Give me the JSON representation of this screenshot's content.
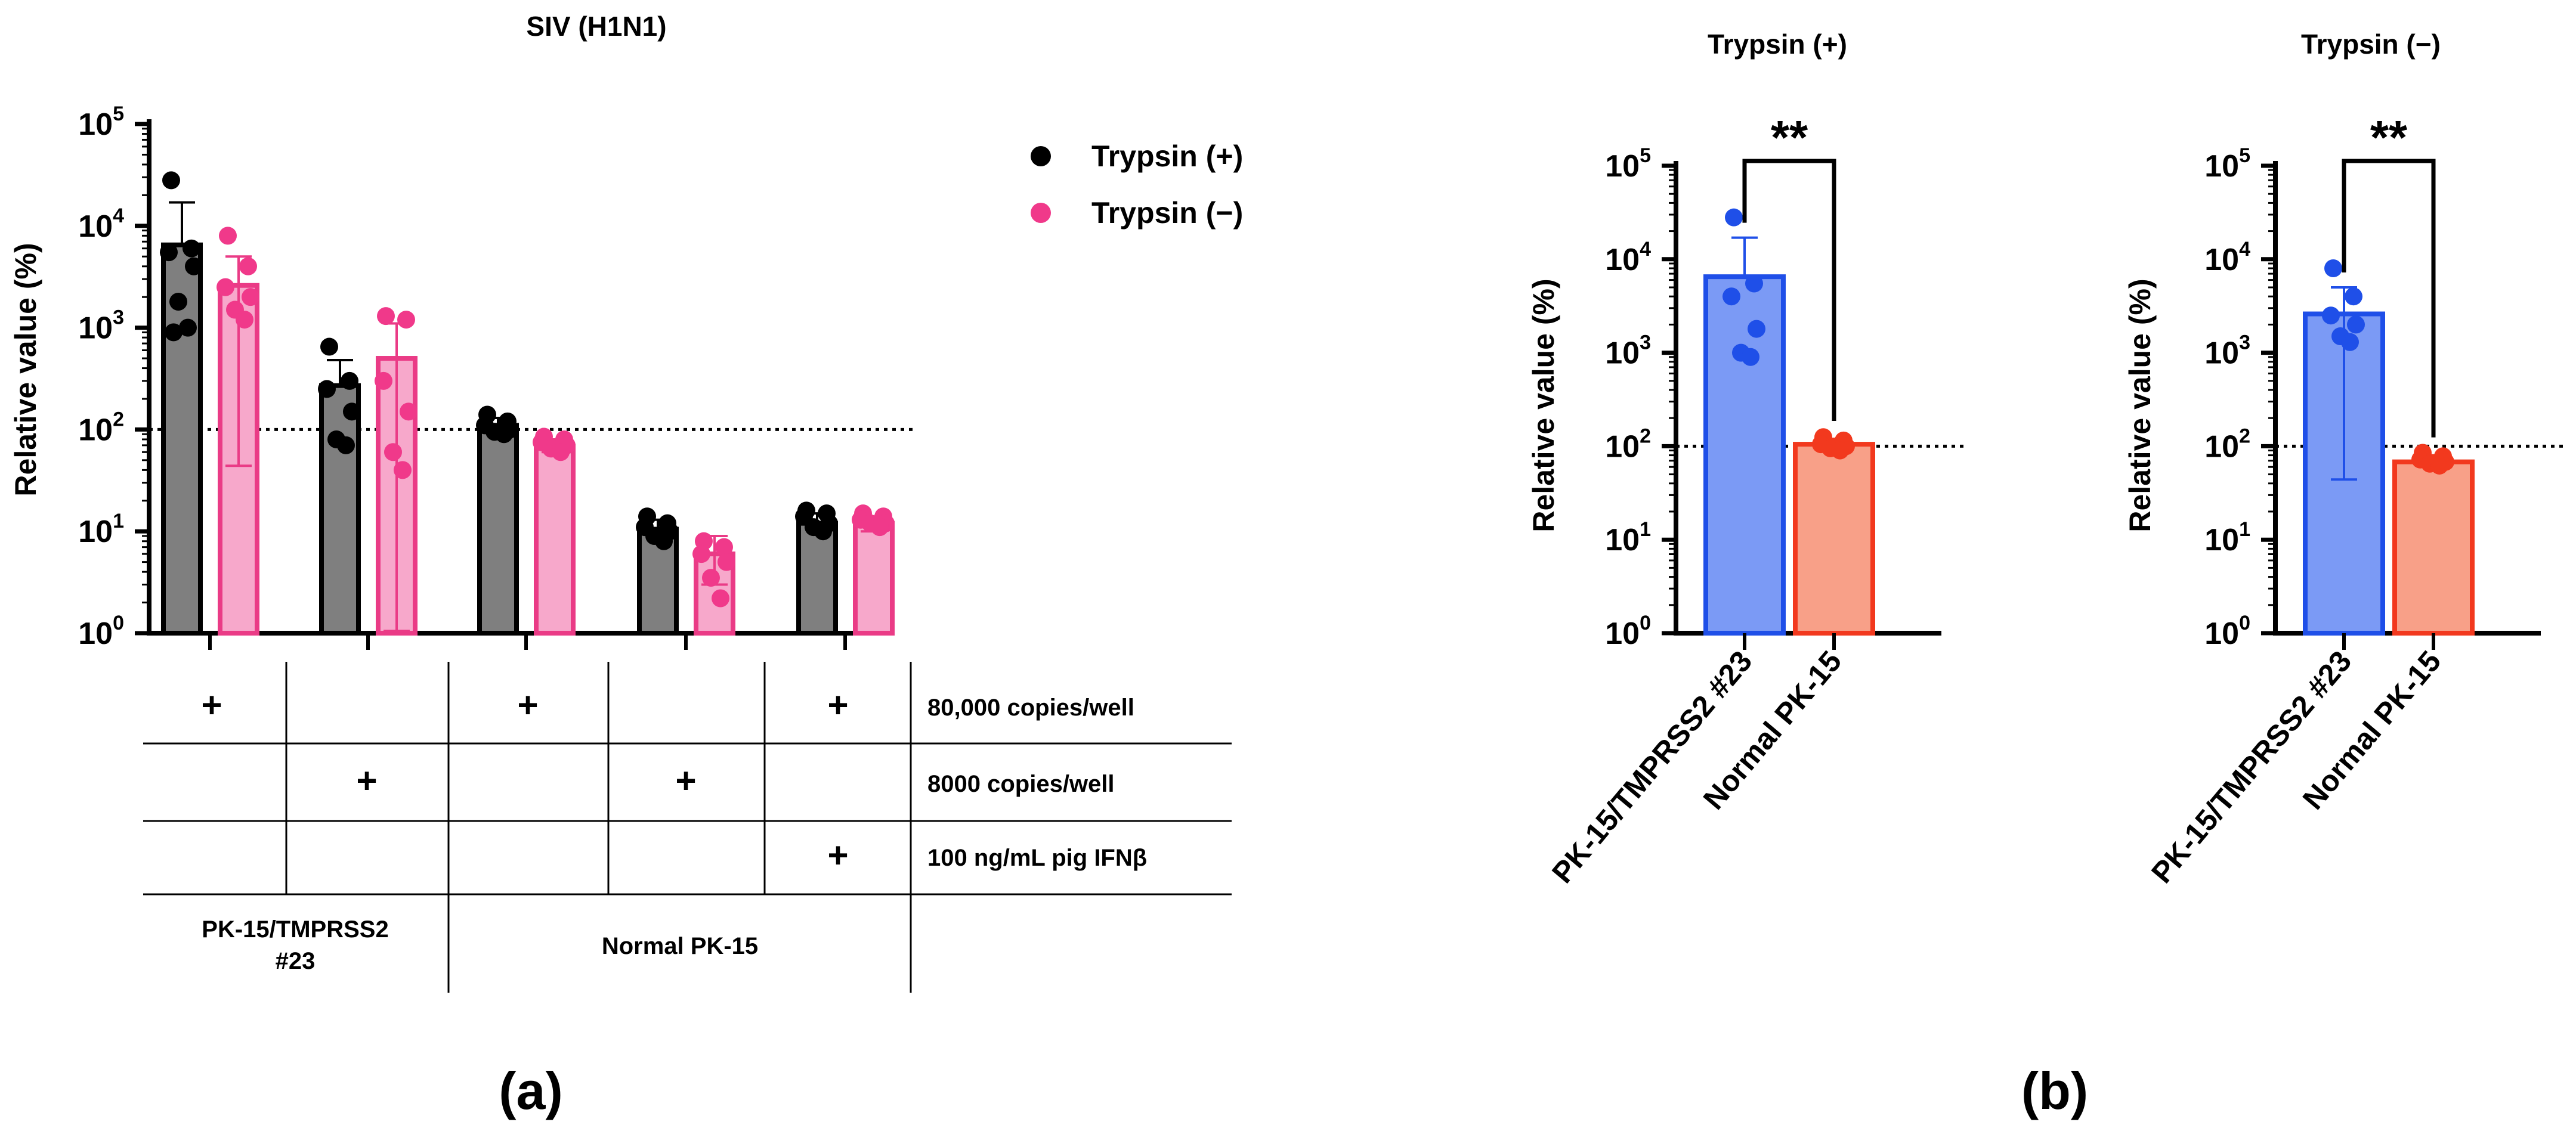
{
  "colors": {
    "black_bar": "#7f7f7f",
    "black_dot": "#000000",
    "pink_bar": "#f7a8cb",
    "pink_dot": "#f0398a",
    "pink_edge": "#ea3b86",
    "blue_bar": "#7b9af5",
    "blue_edge": "#1f4fe8",
    "salmon_bar": "#f8a088",
    "red_edge": "#f2391e",
    "dotted_line": "#000000"
  },
  "chart_data": [
    {
      "id": "a",
      "type": "bar",
      "panel_label": "(a)",
      "title": "SIV (H1N1)",
      "ylabel": "Relative value (%)",
      "yscale": "log",
      "ylim": [
        1,
        100000
      ],
      "yticks": [
        {
          "value": 1,
          "base": "10",
          "exp": "0"
        },
        {
          "value": 10,
          "base": "10",
          "exp": "1"
        },
        {
          "value": 100,
          "base": "10",
          "exp": "2"
        },
        {
          "value": 1000,
          "base": "10",
          "exp": "3"
        },
        {
          "value": 10000,
          "base": "10",
          "exp": "4"
        },
        {
          "value": 100000,
          "base": "10",
          "exp": "5"
        }
      ],
      "reference_line": 100,
      "legend": [
        {
          "name": "Trypsin (+)",
          "color_key": "black_dot"
        },
        {
          "name": "Trypsin (−)",
          "color_key": "pink_dot"
        }
      ],
      "groups": 5,
      "series": [
        {
          "name": "Trypsin (+)",
          "means": [
            6500,
            270,
            110,
            10.5,
            12
          ],
          "errors": [
            17000,
            480,
            130,
            13,
            15
          ],
          "points": [
            [
              28000,
              6000,
              5500,
              4000,
              1800,
              1000,
              900
            ],
            [
              650,
              300,
              250,
              150,
              80,
              70
            ],
            [
              140,
              120,
              110,
              100,
              95,
              90
            ],
            [
              14,
              12,
              11,
              10,
              9,
              8
            ],
            [
              16,
              15,
              14,
              12,
              11,
              10
            ]
          ]
        },
        {
          "name": "Trypsin (−)",
          "means": [
            2600,
            500,
            68,
            6,
            12
          ],
          "errors": [
            5000,
            1100,
            80,
            9,
            14
          ],
          "error_low": [
            44,
            1.05,
            60,
            3,
            10
          ],
          "points": [
            [
              8000,
              4000,
              2500,
              2000,
              1500,
              1200
            ],
            [
              1300,
              1200,
              300,
              150,
              60,
              40
            ],
            [
              85,
              80,
              75,
              70,
              65,
              60
            ],
            [
              8,
              7,
              6,
              5,
              3.5,
              2.2
            ],
            [
              15,
              14,
              13,
              12,
              12,
              11
            ]
          ]
        }
      ],
      "condition_table": {
        "rows": [
          {
            "label": "80,000 copies/well",
            "marks": [
              "+",
              "",
              "+",
              "",
              "+"
            ]
          },
          {
            "label": "8000 copies/well",
            "marks": [
              "",
              "+",
              "",
              "+",
              ""
            ]
          },
          {
            "label": "100 ng/mL pig IFNβ",
            "marks": [
              "",
              "",
              "",
              "",
              "+"
            ]
          }
        ],
        "cell_lines": [
          {
            "label_lines": [
              "PK-15/TMPRSS2",
              "#23"
            ]
          },
          {
            "label_lines": [
              "Normal PK-15"
            ]
          }
        ]
      }
    },
    {
      "id": "b1",
      "type": "bar",
      "panel_label": "(b)",
      "title": "Trypsin (+)",
      "ylabel": "Relative value (%)",
      "yscale": "log",
      "ylim": [
        1,
        100000
      ],
      "reference_line": 100,
      "significance": "**",
      "categories": [
        "PK-15/TMPRSS2 #23",
        "Normal PK-15"
      ],
      "means": [
        6500,
        105
      ],
      "errors": [
        17000,
        120
      ],
      "points": [
        [
          28000,
          5500,
          4000,
          1800,
          1000,
          900
        ],
        [
          125,
          115,
          105,
          100,
          95,
          90
        ]
      ]
    },
    {
      "id": "b2",
      "type": "bar",
      "title": "Trypsin (−)",
      "ylabel": "Relative value (%)",
      "yscale": "log",
      "ylim": [
        1,
        100000
      ],
      "reference_line": 100,
      "significance": "**",
      "categories": [
        "PK-15/TMPRSS2 #23",
        "Normal PK-15"
      ],
      "means": [
        2600,
        68
      ],
      "errors": [
        5000,
        80
      ],
      "error_low": [
        44,
        60
      ],
      "points": [
        [
          8000,
          4000,
          2500,
          2000,
          1500,
          1300
        ],
        [
          85,
          78,
          72,
          68,
          65,
          62
        ]
      ]
    }
  ]
}
